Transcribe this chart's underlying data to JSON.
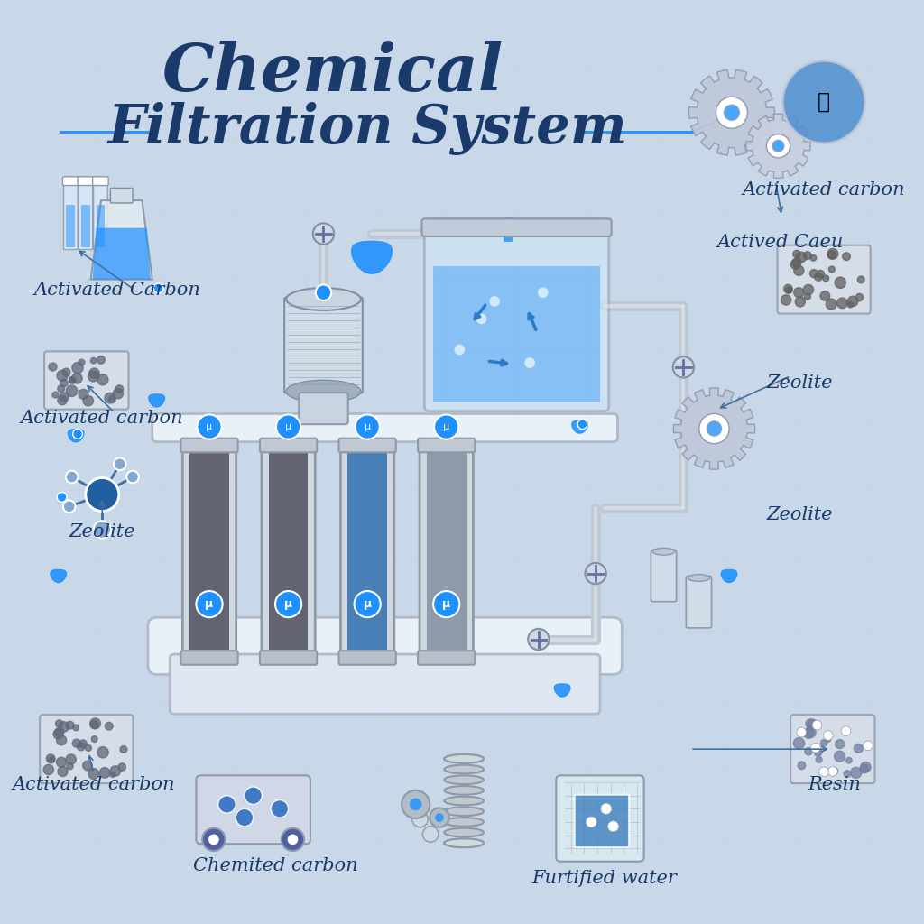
{
  "title_line1": "Chemical",
  "title_line2": "Filtration System",
  "title_color": "#1a3a6b",
  "title_fontsize": 52,
  "background_color": "#c8d8e8",
  "bg_tile_line_color": "#b8cad8",
  "labels": {
    "activated_carbon_topleft": "Activated Carbon",
    "activated_carbon_left": "Activated carbon",
    "activated_carbon_right": "Activated carbon",
    "zeolite_left": "Zeolite",
    "zeolite_right": "Zeolite",
    "zeolite_right2": "Zeolite",
    "activated_carbon_bottom": "Activated carbon",
    "chemited_carbon": "Chemited carbon",
    "furtified_water": "Furtified water",
    "resin": "Resin",
    "actived_caeu": "Actived Caeu"
  },
  "label_color": "#1a3a6b",
  "label_fontsize": 15,
  "water_color": "#2a7bc8",
  "filter_body_color": "#d0d8e0",
  "filter_stripe_color": "#a0b0c0",
  "media_dark_color": "#505060",
  "media_blue_color": "#3070b0",
  "media_light_color": "#8090a0",
  "pipe_color": "#c0c8d4",
  "accent_blue": "#1e90ff",
  "white": "#ffffff",
  "gear_color": "#c0c8d8",
  "tank_color": "#d8e4f0"
}
